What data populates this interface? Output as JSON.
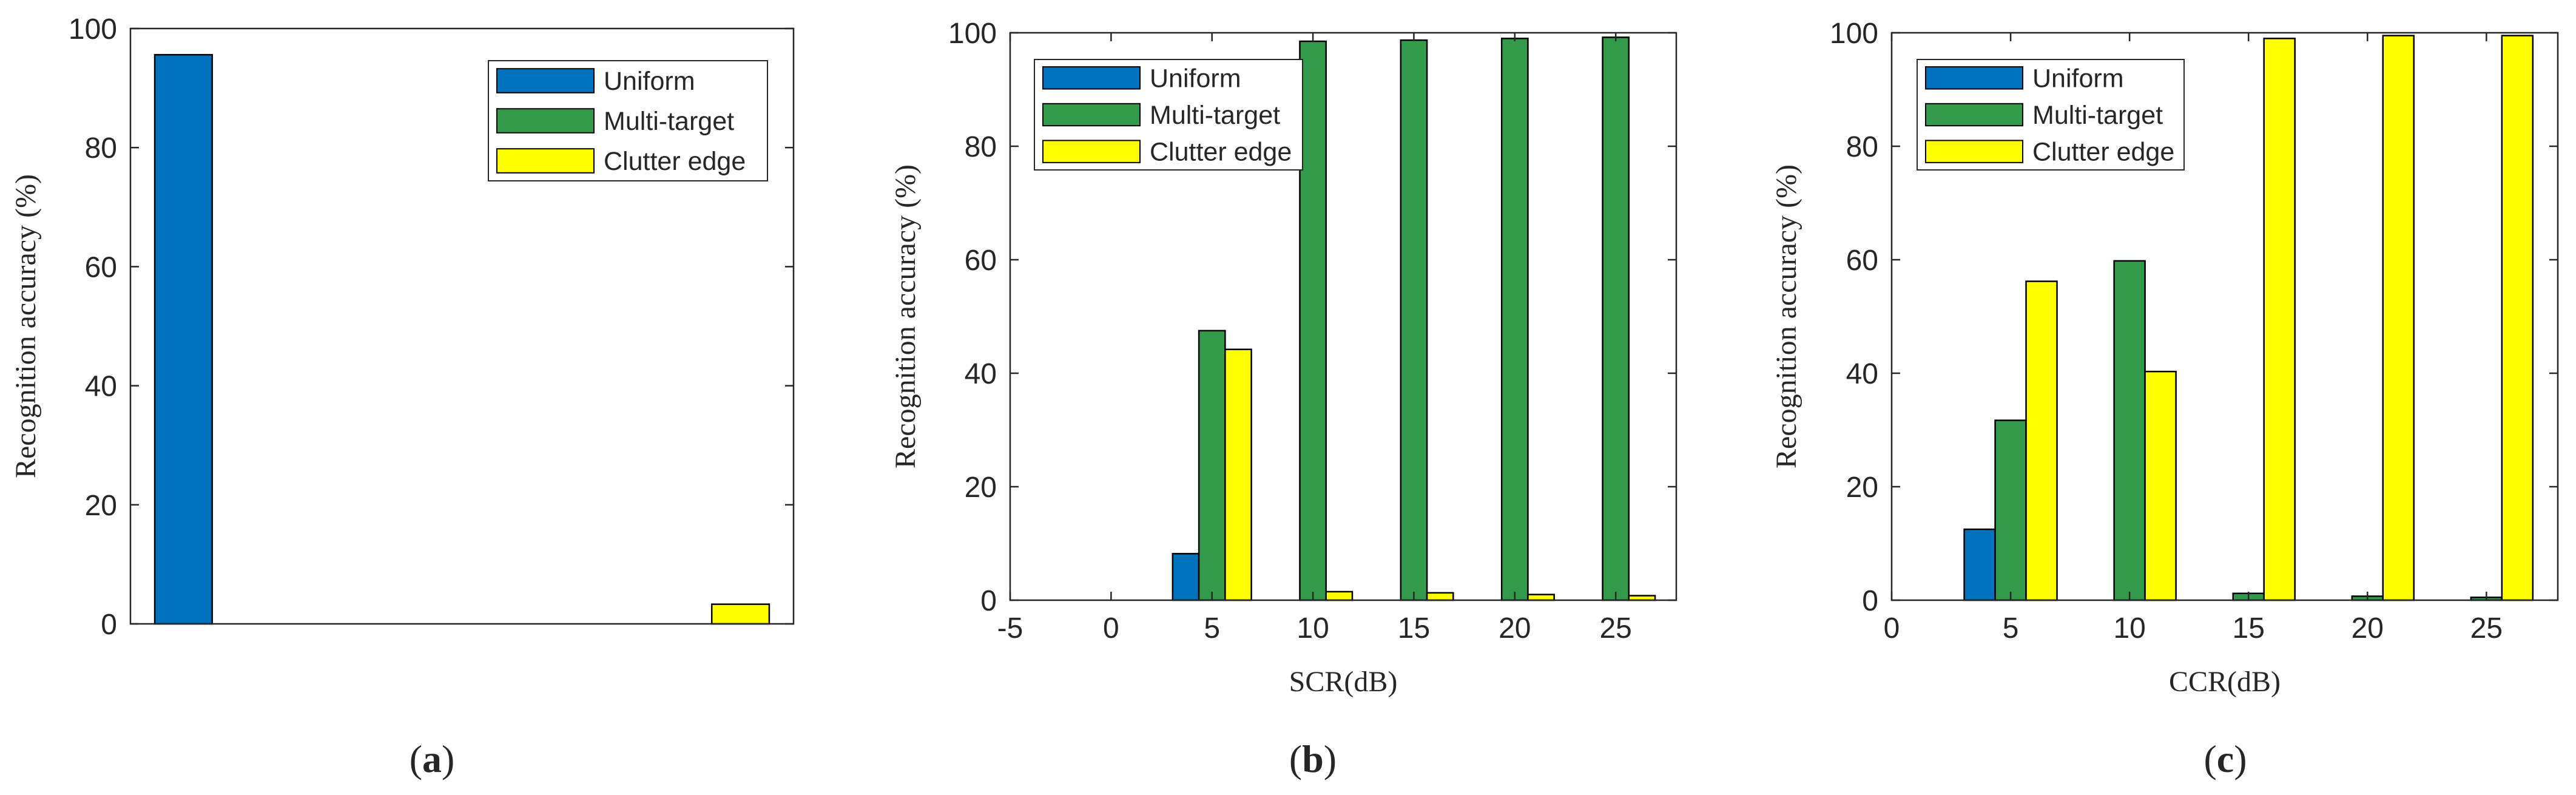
{
  "series_colors": {
    "Uniform": "#0072bd",
    "Multi-target": "#339a4b",
    "Clutter edge": "#ffff00"
  },
  "chart_data": [
    {
      "type": "bar",
      "caption_letter": "a",
      "xlabel": "",
      "ylabel": "Recognition accuracy (%)",
      "xlim": [
        0.5,
        3.5
      ],
      "ylim": [
        0,
        100
      ],
      "yticks": [
        0,
        20,
        40,
        60,
        80,
        100
      ],
      "xticks": [],
      "x": [
        1,
        2,
        3
      ],
      "series": [
        {
          "name": "Uniform",
          "values": [
            95.6,
            0,
            0
          ]
        },
        {
          "name": "Multi-target",
          "values": [
            0,
            0,
            0
          ]
        },
        {
          "name": "Clutter edge",
          "values": [
            0,
            0,
            3.3
          ]
        }
      ],
      "legend": "top-right",
      "grid": false
    },
    {
      "type": "bar",
      "caption_letter": "b",
      "xlabel": "SCR(dB)",
      "ylabel": "Recognition accuracy (%)",
      "xlim": [
        -5,
        28
      ],
      "ylim": [
        0,
        100
      ],
      "xticks": [
        -5,
        0,
        5,
        10,
        15,
        20,
        25
      ],
      "yticks": [
        0,
        20,
        40,
        60,
        80,
        100
      ],
      "x": [
        0,
        5,
        10,
        15,
        20,
        25
      ],
      "series": [
        {
          "name": "Uniform",
          "values": [
            0,
            8.2,
            0,
            0,
            0,
            0
          ]
        },
        {
          "name": "Multi-target",
          "values": [
            0,
            47.5,
            98.5,
            98.7,
            99.0,
            99.2
          ]
        },
        {
          "name": "Clutter edge",
          "values": [
            0,
            44.2,
            1.5,
            1.3,
            1.0,
            0.8
          ]
        }
      ],
      "legend": "top-left",
      "grid": false
    },
    {
      "type": "bar",
      "caption_letter": "c",
      "xlabel": "CCR(dB)",
      "ylabel": "Recognition accuracy (%)",
      "xlim": [
        0,
        28
      ],
      "ylim": [
        0,
        100
      ],
      "xticks": [
        0,
        5,
        10,
        15,
        20,
        25
      ],
      "yticks": [
        0,
        20,
        40,
        60,
        80,
        100
      ],
      "x": [
        0,
        5,
        10,
        15,
        20,
        25
      ],
      "series": [
        {
          "name": "Uniform",
          "values": [
            0,
            12.5,
            0,
            0,
            0,
            0
          ]
        },
        {
          "name": "Multi-target",
          "values": [
            0,
            31.7,
            59.8,
            1.2,
            0.7,
            0.5
          ]
        },
        {
          "name": "Clutter edge",
          "values": [
            0,
            56.2,
            40.3,
            99.0,
            99.5,
            99.5
          ]
        }
      ],
      "legend": "top-left",
      "grid": false
    }
  ]
}
